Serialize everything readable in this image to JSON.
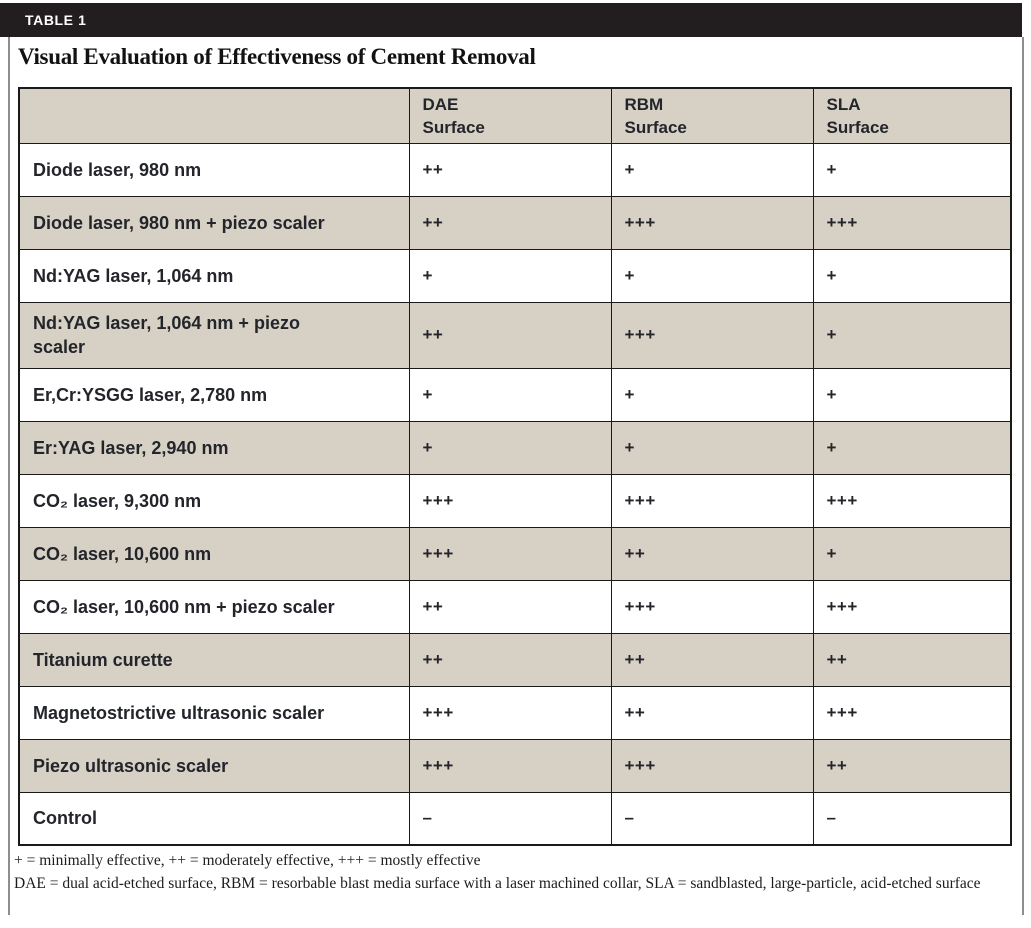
{
  "page": {
    "tag": "TABLE 1",
    "title": "Visual Evaluation of Effectiveness of Cement Removal"
  },
  "table": {
    "columns": [
      "",
      "DAE\nSurface",
      "RBM\nSurface",
      "SLA\nSurface"
    ],
    "rows": [
      {
        "label": "Diode laser, 980 nm",
        "dae": "++",
        "rbm": "+",
        "sla": "+"
      },
      {
        "label": "Diode laser, 980 nm + piezo scaler",
        "dae": "++",
        "rbm": "+++",
        "sla": "+++"
      },
      {
        "label": "Nd:YAG laser, 1,064 nm",
        "dae": "+",
        "rbm": "+",
        "sla": "+"
      },
      {
        "label": "Nd:YAG laser, 1,064 nm + piezo\nscaler",
        "dae": "++",
        "rbm": "+++",
        "sla": "+"
      },
      {
        "label": "Er,Cr:YSGG laser, 2,780 nm",
        "dae": "+",
        "rbm": "+",
        "sla": "+"
      },
      {
        "label": "Er:YAG laser, 2,940 nm",
        "dae": "+",
        "rbm": "+",
        "sla": "+"
      },
      {
        "label": "CO₂ laser, 9,300 nm",
        "dae": "+++",
        "rbm": "+++",
        "sla": "+++"
      },
      {
        "label": "CO₂ laser, 10,600 nm",
        "dae": "+++",
        "rbm": "++",
        "sla": "+"
      },
      {
        "label": "CO₂ laser, 10,600 nm + piezo scaler",
        "dae": "++",
        "rbm": "+++",
        "sla": "+++"
      },
      {
        "label": "Titanium curette",
        "dae": "++",
        "rbm": "++",
        "sla": "++"
      },
      {
        "label": "Magnetostrictive ultrasonic scaler",
        "dae": "+++",
        "rbm": "++",
        "sla": "+++"
      },
      {
        "label": "Piezo ultrasonic scaler",
        "dae": "+++",
        "rbm": "+++",
        "sla": "++"
      },
      {
        "label": "Control",
        "dae": "–",
        "rbm": "–",
        "sla": "–"
      }
    ]
  },
  "footnotes": {
    "line1": "+ = minimally effective, ++ = moderately effective, +++ = mostly effective",
    "line2": "DAE = dual acid-etched surface, RBM = resorbable blast media surface with a laser machined collar, SLA = sandblasted, large-particle, acid-etched surface"
  },
  "colors": {
    "header_bar": "#221e1f",
    "row_shade": "#d7d1c5",
    "border": "#1a1a1a",
    "frame_line": "#8e8e8e",
    "text": "#23252b"
  }
}
